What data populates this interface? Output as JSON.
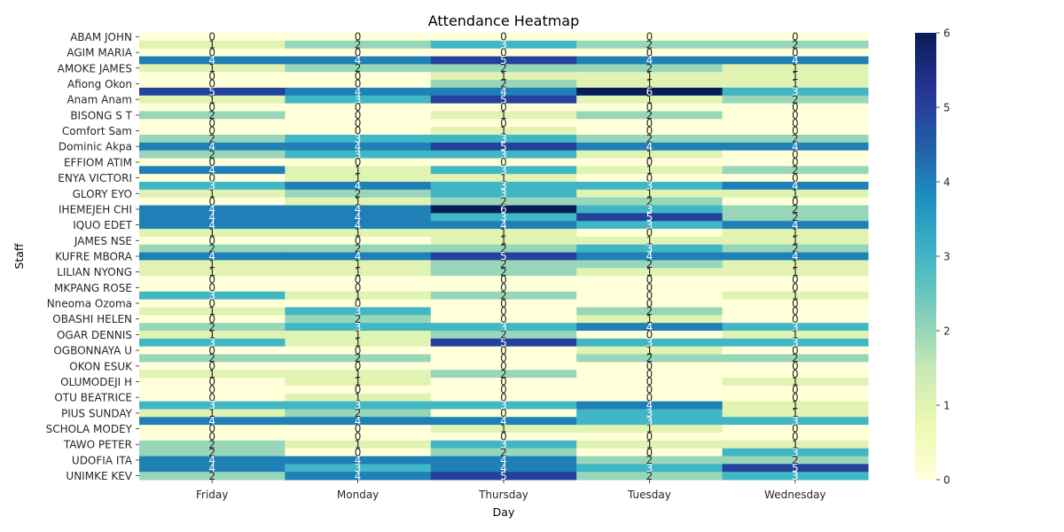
{
  "chart_data": {
    "type": "heatmap",
    "title": "Attendance Heatmap",
    "xlabel": "Day",
    "ylabel": "Staff",
    "x_categories": [
      "Friday",
      "Monday",
      "Thursday",
      "Tuesday",
      "Wednesday"
    ],
    "y_categories": [
      "ABAM JOHN",
      "",
      "AGIM MARIA",
      "",
      "AMOKE JAMES",
      "",
      "Afiong Okon",
      "",
      "Anam Anam",
      "",
      "BISONG S T",
      "",
      "Comfort Sam",
      "",
      "Dominic Akpa",
      "",
      "EFFIOM ATIM",
      "",
      "ENYA VICTORI",
      "",
      "GLORY EYO",
      "",
      "IHEMEJEH CHI",
      "",
      "IQUO EDET",
      "",
      "JAMES NSE",
      "",
      "KUFRE MBORA",
      "",
      "LILIAN NYONG",
      "",
      "MKPANG ROSE",
      "",
      "Nneoma Ozoma",
      "",
      "OBASHI HELEN",
      "",
      "OGAR DENNIS",
      "",
      "OGBONNAYA U",
      "",
      "OKON  ESUK",
      "",
      "OLUMODEJI H",
      "",
      "OTU BEATRICE",
      "",
      "PIUS SUNDAY",
      "",
      "SCHOLA MODEY",
      "",
      "TAWO PETER",
      "",
      "UDOFIA ITA",
      "",
      "UNIMKE KEV"
    ],
    "values": [
      [
        0,
        0,
        0,
        0,
        0
      ],
      [
        1,
        2,
        3,
        2,
        2
      ],
      [
        0,
        0,
        0,
        0,
        0
      ],
      [
        4,
        4,
        5,
        4,
        4
      ],
      [
        1,
        2,
        2,
        2,
        1
      ],
      [
        0,
        0,
        1,
        1,
        1
      ],
      [
        0,
        0,
        2,
        1,
        1
      ],
      [
        5,
        4,
        4,
        6,
        3
      ],
      [
        1,
        3,
        5,
        1,
        2
      ],
      [
        0,
        0,
        0,
        0,
        0
      ],
      [
        2,
        0,
        1,
        2,
        0
      ],
      [
        0,
        0,
        0,
        0,
        0
      ],
      [
        0,
        0,
        1,
        0,
        0
      ],
      [
        2,
        3,
        3,
        2,
        2
      ],
      [
        4,
        4,
        5,
        4,
        4
      ],
      [
        2,
        3,
        3,
        1,
        0
      ],
      [
        0,
        0,
        0,
        0,
        0
      ],
      [
        4,
        1,
        3,
        1,
        2
      ],
      [
        0,
        1,
        1,
        0,
        0
      ],
      [
        3,
        4,
        3,
        3,
        4
      ],
      [
        1,
        2,
        3,
        1,
        1
      ],
      [
        0,
        1,
        2,
        2,
        0
      ],
      [
        4,
        4,
        6,
        3,
        2
      ],
      [
        4,
        4,
        3,
        5,
        2
      ],
      [
        4,
        4,
        4,
        3,
        4
      ],
      [
        1,
        1,
        1,
        0,
        1
      ],
      [
        0,
        0,
        1,
        1,
        1
      ],
      [
        2,
        2,
        2,
        3,
        2
      ],
      [
        4,
        4,
        5,
        4,
        4
      ],
      [
        1,
        1,
        2,
        2,
        1
      ],
      [
        1,
        1,
        2,
        1,
        1
      ],
      [
        0,
        0,
        0,
        0,
        0
      ],
      [
        0,
        0,
        0,
        0,
        0
      ],
      [
        3,
        1,
        2,
        0,
        1
      ],
      [
        0,
        0,
        0,
        0,
        0
      ],
      [
        1,
        3,
        0,
        2,
        0
      ],
      [
        0,
        2,
        0,
        1,
        0
      ],
      [
        2,
        3,
        3,
        4,
        3
      ],
      [
        1,
        1,
        2,
        0,
        1
      ],
      [
        3,
        1,
        5,
        3,
        3
      ],
      [
        0,
        0,
        0,
        1,
        0
      ],
      [
        2,
        2,
        0,
        2,
        2
      ],
      [
        0,
        0,
        0,
        0,
        0
      ],
      [
        1,
        1,
        2,
        0,
        0
      ],
      [
        0,
        1,
        0,
        0,
        1
      ],
      [
        0,
        0,
        0,
        0,
        0
      ],
      [
        0,
        1,
        0,
        0,
        0
      ],
      [
        3,
        3,
        3,
        4,
        1
      ],
      [
        1,
        2,
        0,
        3,
        1
      ],
      [
        4,
        4,
        4,
        3,
        3
      ],
      [
        0,
        0,
        1,
        1,
        0
      ],
      [
        0,
        0,
        0,
        0,
        0
      ],
      [
        2,
        1,
        3,
        1,
        1
      ],
      [
        2,
        0,
        2,
        0,
        3
      ],
      [
        4,
        4,
        4,
        2,
        2
      ],
      [
        4,
        3,
        4,
        3,
        5
      ],
      [
        2,
        4,
        5,
        2,
        3
      ]
    ],
    "vmin": 0,
    "vmax": 6,
    "colorbar_ticks": [
      0,
      1,
      2,
      3,
      4,
      5,
      6
    ],
    "colormap": [
      "#ffffd9",
      "#edf8b1",
      "#c7e9b4",
      "#7fcdbb",
      "#41b6c4",
      "#1d91c0",
      "#225ea8",
      "#253494",
      "#081d58"
    ],
    "annotated": true
  }
}
